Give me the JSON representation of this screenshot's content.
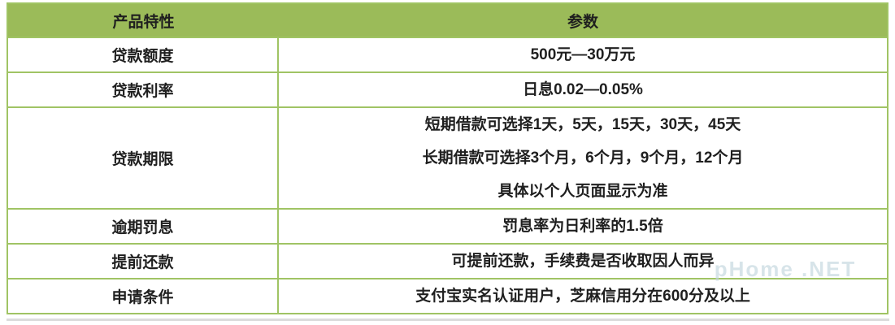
{
  "colors": {
    "header_bg": "#9BBB59",
    "border": "#A0C464",
    "text": "#1F1F1F",
    "bottom_rule": "#DCDCDC",
    "watermark": "#C3D6DE"
  },
  "table": {
    "header": {
      "feature": "产品特性",
      "params": "参数"
    },
    "rows": [
      {
        "feature": "贷款额度",
        "params": [
          "500元—30万元"
        ]
      },
      {
        "feature": "贷款利率",
        "params": [
          "日息0.02—0.05%"
        ]
      },
      {
        "feature": "贷款期限",
        "params": [
          "短期借款可选择1天，5天，15天，30天，45天",
          "长期借款可选择3个月，6个月，9个月，12个月",
          "具体以个人页面显示为准"
        ]
      },
      {
        "feature": "逾期罚息",
        "params": [
          "罚息率为日利率的1.5倍"
        ]
      },
      {
        "feature": "提前还款",
        "params": [
          "可提前还款，手续费是否收取因人而异"
        ]
      },
      {
        "feature": "申请条件",
        "params": [
          "支付宝实名认证用户，芝麻信用分在600分及以上"
        ]
      }
    ]
  },
  "watermark_text": "pHome .NET"
}
